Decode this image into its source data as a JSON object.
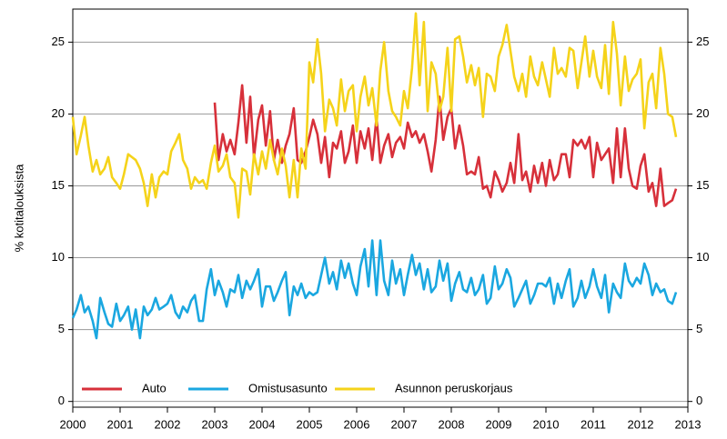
{
  "chart_data": {
    "type": "line",
    "y_label": "% kotitalouksista",
    "xlim": [
      2000,
      2013
    ],
    "xticks": [
      2000,
      2001,
      2002,
      2003,
      2004,
      2005,
      2006,
      2007,
      2008,
      2009,
      2010,
      2011,
      2012,
      2013
    ],
    "ylim": [
      -0.4,
      27.3
    ],
    "yticks": [
      0,
      5,
      10,
      15,
      20,
      25
    ],
    "y2lim": [
      -0.4,
      27.3
    ],
    "y2ticks": [
      0,
      5,
      10,
      15,
      20,
      25
    ],
    "grid": true,
    "legend": "bottom-left",
    "x": [
      2000.0,
      2000.08,
      2000.17,
      2000.25,
      2000.33,
      2000.42,
      2000.5,
      2000.58,
      2000.67,
      2000.75,
      2000.83,
      2000.92,
      2001.0,
      2001.08,
      2001.17,
      2001.25,
      2001.33,
      2001.42,
      2001.5,
      2001.58,
      2001.67,
      2001.75,
      2001.83,
      2001.92,
      2002.0,
      2002.08,
      2002.17,
      2002.25,
      2002.33,
      2002.42,
      2002.5,
      2002.58,
      2002.67,
      2002.75,
      2002.83,
      2002.92,
      2003.0,
      2003.08,
      2003.17,
      2003.25,
      2003.33,
      2003.42,
      2003.5,
      2003.58,
      2003.67,
      2003.75,
      2003.83,
      2003.92,
      2004.0,
      2004.08,
      2004.17,
      2004.25,
      2004.33,
      2004.42,
      2004.5,
      2004.58,
      2004.67,
      2004.75,
      2004.83,
      2004.92,
      2005.0,
      2005.08,
      2005.17,
      2005.25,
      2005.33,
      2005.42,
      2005.5,
      2005.58,
      2005.67,
      2005.75,
      2005.83,
      2005.92,
      2006.0,
      2006.08,
      2006.17,
      2006.25,
      2006.33,
      2006.42,
      2006.5,
      2006.58,
      2006.67,
      2006.75,
      2006.83,
      2006.92,
      2007.0,
      2007.08,
      2007.17,
      2007.25,
      2007.33,
      2007.42,
      2007.5,
      2007.58,
      2007.67,
      2007.75,
      2007.83,
      2007.92,
      2008.0,
      2008.08,
      2008.17,
      2008.25,
      2008.33,
      2008.42,
      2008.5,
      2008.58,
      2008.67,
      2008.75,
      2008.83,
      2008.92,
      2009.0,
      2009.08,
      2009.17,
      2009.25,
      2009.33,
      2009.42,
      2009.5,
      2009.58,
      2009.67,
      2009.75,
      2009.83,
      2009.92,
      2010.0,
      2010.08,
      2010.17,
      2010.25,
      2010.33,
      2010.42,
      2010.5,
      2010.58,
      2010.67,
      2010.75,
      2010.83,
      2010.92,
      2011.0,
      2011.08,
      2011.17,
      2011.25,
      2011.33,
      2011.42,
      2011.5,
      2011.58,
      2011.67,
      2011.75,
      2011.83,
      2011.92,
      2012.0,
      2012.08,
      2012.17,
      2012.25,
      2012.33,
      2012.42,
      2012.5,
      2012.58,
      2012.67,
      2012.75
    ],
    "series": [
      {
        "name": "Auto",
        "color": "#d7303a",
        "values": [
          null,
          null,
          null,
          null,
          null,
          null,
          null,
          null,
          null,
          null,
          null,
          null,
          null,
          null,
          null,
          null,
          null,
          null,
          null,
          null,
          null,
          null,
          null,
          null,
          null,
          null,
          null,
          null,
          null,
          null,
          null,
          null,
          null,
          null,
          null,
          null,
          20.8,
          16.8,
          18.6,
          17.4,
          18.2,
          17.2,
          19.4,
          22.0,
          18.0,
          21.2,
          17.0,
          19.6,
          20.6,
          17.8,
          20.2,
          16.8,
          18.2,
          16.6,
          17.8,
          18.6,
          20.4,
          16.8,
          16.6,
          17.4,
          18.4,
          19.6,
          18.6,
          16.6,
          18.4,
          15.6,
          18.0,
          17.6,
          18.8,
          16.6,
          17.4,
          19.2,
          16.6,
          18.8,
          17.6,
          19.0,
          16.8,
          19.8,
          16.6,
          17.8,
          18.6,
          17.0,
          18.0,
          18.4,
          17.6,
          19.4,
          18.4,
          18.8,
          18.0,
          18.6,
          17.4,
          16.0,
          18.2,
          21.2,
          18.2,
          19.8,
          20.4,
          17.6,
          19.2,
          17.8,
          15.8,
          16.0,
          15.8,
          17.0,
          14.8,
          15.0,
          14.2,
          16.0,
          15.4,
          14.6,
          15.2,
          16.6,
          15.2,
          18.6,
          15.4,
          16.0,
          14.6,
          16.4,
          15.2,
          16.6,
          15.0,
          16.8,
          15.4,
          15.8,
          17.2,
          17.2,
          15.6,
          18.2,
          17.8,
          18.2,
          17.6,
          18.4,
          15.6,
          18.0,
          16.8,
          17.2,
          17.6,
          15.2,
          19.0,
          15.6,
          19.0,
          16.2,
          15.0,
          14.8,
          16.4,
          17.2,
          14.6,
          15.2,
          13.6,
          16.2,
          13.6,
          13.8,
          14.0,
          14.8
        ]
      },
      {
        "name": "Omistusasunto",
        "color": "#1aa7e0",
        "values": [
          5.8,
          6.4,
          7.4,
          6.2,
          6.6,
          5.6,
          4.4,
          7.2,
          6.2,
          5.4,
          5.2,
          6.8,
          5.6,
          6.0,
          6.6,
          5.0,
          6.4,
          4.4,
          6.6,
          6.0,
          6.4,
          7.2,
          6.4,
          6.6,
          6.8,
          7.4,
          6.2,
          5.8,
          6.6,
          6.2,
          7.0,
          7.4,
          5.6,
          5.6,
          7.8,
          9.2,
          7.4,
          8.4,
          7.6,
          6.6,
          7.8,
          7.6,
          8.8,
          7.2,
          8.4,
          7.8,
          8.4,
          9.2,
          6.6,
          8.0,
          8.0,
          7.0,
          7.6,
          8.4,
          9.0,
          6.0,
          8.0,
          7.4,
          8.2,
          7.2,
          7.6,
          7.4,
          7.6,
          8.8,
          10.0,
          8.2,
          9.0,
          7.8,
          9.8,
          8.6,
          9.6,
          8.2,
          7.4,
          9.4,
          10.6,
          8.0,
          11.2,
          7.4,
          11.2,
          8.4,
          7.4,
          9.8,
          8.2,
          9.2,
          7.4,
          8.8,
          10.2,
          8.8,
          9.6,
          7.8,
          9.2,
          7.6,
          8.0,
          9.8,
          8.4,
          9.6,
          7.0,
          8.2,
          9.0,
          7.8,
          7.6,
          8.6,
          7.4,
          7.8,
          8.8,
          6.8,
          7.2,
          9.4,
          7.8,
          8.2,
          9.2,
          8.6,
          6.6,
          7.2,
          7.8,
          8.4,
          6.8,
          7.4,
          8.2,
          8.2,
          8.0,
          8.6,
          6.8,
          8.2,
          7.2,
          8.4,
          9.2,
          6.6,
          7.2,
          8.4,
          7.2,
          8.0,
          9.2,
          8.0,
          7.2,
          8.8,
          6.2,
          8.2,
          7.6,
          7.2,
          9.6,
          8.4,
          8.0,
          8.6,
          8.2,
          9.6,
          8.8,
          7.4,
          8.2,
          7.6,
          7.8,
          7.0,
          6.8,
          7.6
        ]
      },
      {
        "name": "Asunnon peruskorjaus",
        "color": "#f5d31a",
        "values": [
          19.8,
          17.2,
          18.5,
          19.8,
          17.8,
          16.0,
          16.8,
          15.8,
          16.2,
          17.0,
          15.6,
          15.2,
          14.8,
          15.8,
          17.2,
          17.0,
          16.8,
          16.2,
          15.2,
          13.6,
          15.8,
          14.2,
          15.6,
          16.0,
          15.8,
          17.4,
          18.0,
          18.6,
          16.8,
          16.2,
          14.8,
          15.6,
          15.2,
          15.4,
          14.8,
          16.6,
          17.8,
          16.0,
          16.4,
          17.2,
          15.6,
          15.2,
          12.8,
          16.2,
          16.0,
          14.4,
          17.2,
          15.8,
          17.4,
          16.2,
          18.2,
          16.8,
          15.8,
          17.6,
          16.4,
          14.2,
          16.8,
          14.2,
          17.6,
          16.2,
          23.6,
          22.2,
          25.2,
          22.8,
          18.8,
          21.0,
          20.4,
          19.2,
          22.4,
          20.2,
          21.6,
          22.0,
          18.8,
          21.2,
          22.6,
          20.6,
          21.8,
          19.2,
          23.0,
          25.0,
          21.6,
          20.2,
          19.8,
          19.2,
          21.6,
          20.4,
          23.2,
          27.0,
          22.0,
          26.4,
          20.2,
          23.6,
          22.8,
          20.2,
          21.2,
          24.6,
          20.2,
          25.2,
          25.4,
          24.0,
          22.2,
          23.4,
          22.0,
          23.2,
          19.8,
          22.8,
          22.6,
          21.6,
          24.0,
          24.8,
          26.2,
          24.4,
          22.6,
          21.6,
          22.8,
          21.2,
          24.0,
          22.6,
          22.0,
          23.6,
          22.4,
          21.2,
          24.6,
          22.8,
          23.2,
          22.6,
          24.6,
          24.4,
          21.8,
          23.6,
          25.4,
          22.6,
          24.4,
          22.6,
          21.8,
          24.8,
          21.4,
          26.4,
          24.2,
          20.6,
          24.0,
          21.6,
          22.4,
          22.8,
          23.8,
          19.0,
          22.2,
          22.8,
          20.4,
          24.6,
          22.8,
          20.0,
          19.8,
          18.4
        ]
      }
    ]
  }
}
